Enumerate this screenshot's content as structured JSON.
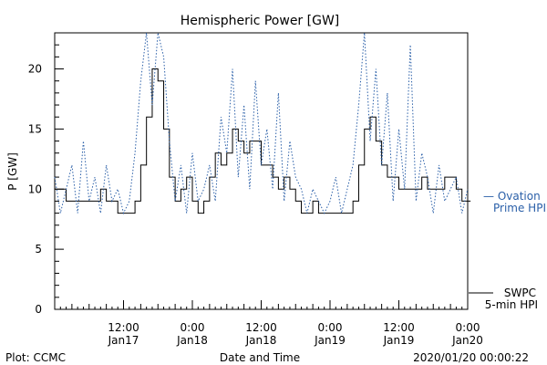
{
  "chart_data": {
    "type": "line",
    "title": "Hemispheric Power [GW]",
    "ylabel": "P [GW]",
    "xlabel": "Date and Time",
    "ylim": [
      0,
      23
    ],
    "xlim_hours": [
      0,
      72
    ],
    "yticks": [
      0,
      5,
      10,
      15,
      20
    ],
    "xticks": [
      {
        "hour": 12,
        "time": "12:00",
        "date": "Jan17"
      },
      {
        "hour": 24,
        "time": "0:00",
        "date": "Jan18"
      },
      {
        "hour": 36,
        "time": "12:00",
        "date": "Jan18"
      },
      {
        "hour": 48,
        "time": "0:00",
        "date": "Jan19"
      },
      {
        "hour": 60,
        "time": "12:00",
        "date": "Jan19"
      },
      {
        "hour": 72,
        "time": "0:00",
        "date": "Jan20"
      }
    ],
    "grid": false,
    "legend_position": "right",
    "series": [
      {
        "name": "SWPC 5-min HPI",
        "legend_line1": "SWPC",
        "legend_line2": "5-min HPI",
        "color": "#000000",
        "style": "solid",
        "x": [
          0,
          1,
          2,
          3,
          4,
          5,
          6,
          7,
          8,
          9,
          10,
          11,
          12,
          13,
          14,
          15,
          16,
          17,
          18,
          19,
          20,
          21,
          22,
          23,
          24,
          25,
          26,
          27,
          28,
          29,
          30,
          31,
          32,
          33,
          34,
          35,
          36,
          37,
          38,
          39,
          40,
          41,
          42,
          43,
          44,
          45,
          46,
          47,
          48,
          49,
          50,
          51,
          52,
          53,
          54,
          55,
          56,
          57,
          58,
          59,
          60,
          61,
          62,
          63,
          64,
          65,
          66,
          67,
          68,
          69,
          70,
          71,
          72
        ],
        "values": [
          10,
          10,
          9,
          9,
          9,
          9,
          9,
          9,
          10,
          9,
          9,
          8,
          8,
          8,
          9,
          12,
          16,
          20,
          19,
          15,
          11,
          9,
          10,
          11,
          9,
          8,
          9,
          11,
          13,
          12,
          13,
          15,
          14,
          13,
          14,
          14,
          12,
          12,
          11,
          10,
          11,
          10,
          9,
          8,
          8,
          9,
          8,
          8,
          8,
          8,
          8,
          8,
          9,
          12,
          15,
          16,
          14,
          12,
          11,
          11,
          10,
          10,
          10,
          10,
          11,
          10,
          10,
          10,
          11,
          11,
          10,
          9,
          9
        ]
      },
      {
        "name": "Ovation Prime HPI",
        "legend_line1": "— Ovation",
        "legend_line2": "Prime HPI",
        "color": "#2a5fa8",
        "style": "dotted",
        "x": [
          0,
          1,
          2,
          3,
          4,
          5,
          6,
          7,
          8,
          9,
          10,
          11,
          12,
          13,
          14,
          15,
          16,
          17,
          18,
          19,
          20,
          21,
          22,
          23,
          24,
          25,
          26,
          27,
          28,
          29,
          30,
          31,
          32,
          33,
          34,
          35,
          36,
          37,
          38,
          39,
          40,
          41,
          42,
          43,
          44,
          45,
          46,
          47,
          48,
          49,
          50,
          51,
          52,
          53,
          54,
          55,
          56,
          57,
          58,
          59,
          60,
          61,
          62,
          63,
          64,
          65,
          66,
          67,
          68,
          69,
          70,
          71,
          72
        ],
        "values": [
          11,
          8,
          10,
          12,
          8,
          14,
          9,
          11,
          8,
          12,
          9,
          10,
          8,
          9,
          13,
          19,
          23,
          17,
          24,
          21,
          14,
          9,
          12,
          8,
          13,
          9,
          10,
          12,
          9,
          16,
          13,
          20,
          11,
          17,
          10,
          19,
          12,
          15,
          10,
          18,
          9,
          14,
          11,
          10,
          8,
          10,
          9,
          8,
          9,
          11,
          8,
          10,
          12,
          17,
          23,
          14,
          20,
          12,
          18,
          9,
          15,
          10,
          22,
          9,
          13,
          11,
          8,
          12,
          9,
          10,
          11,
          8,
          10
        ]
      }
    ],
    "footer_left": "Plot: CCMC",
    "footer_right": "2020/01/20 00:00:22"
  }
}
